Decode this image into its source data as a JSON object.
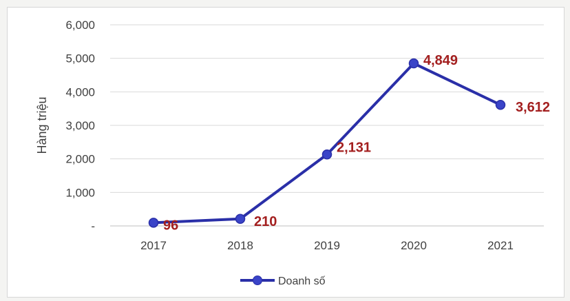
{
  "chart_data": {
    "type": "line",
    "categories": [
      "2017",
      "2018",
      "2019",
      "2020",
      "2021"
    ],
    "series": [
      {
        "name": "Doanh số",
        "values": [
          96,
          210,
          2131,
          4849,
          3612
        ],
        "data_labels": [
          "96",
          "210",
          "2,131",
          "4,849",
          "3,612"
        ]
      }
    ],
    "ylabel": "Hàng triệu",
    "ylim": [
      0,
      6000
    ],
    "y_ticks": [
      {
        "value": 0,
        "label": "-"
      },
      {
        "value": 1000,
        "label": "1,000"
      },
      {
        "value": 2000,
        "label": "2,000"
      },
      {
        "value": 3000,
        "label": "3,000"
      },
      {
        "value": 4000,
        "label": "4,000"
      },
      {
        "value": 5000,
        "label": "5,000"
      },
      {
        "value": 6000,
        "label": "6,000"
      }
    ],
    "grid": true,
    "legend": "bottom",
    "colors": {
      "line": "#2a2fa8",
      "marker": "#3a44c8",
      "data_label": "#a31f1f",
      "grid": "#d9d9d9",
      "axis": "#bfbfbf"
    }
  }
}
